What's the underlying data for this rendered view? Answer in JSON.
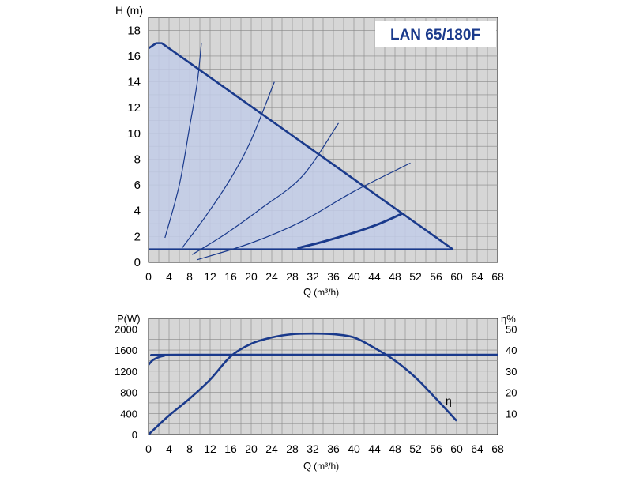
{
  "chart_data": [
    {
      "type": "line",
      "title": "LAN 65/180F",
      "ylabel": "H (m)",
      "xlabel": "Q",
      "xlabel_unit": "(m³/h)",
      "xlim": [
        0,
        68
      ],
      "ylim": [
        0,
        19
      ],
      "x_ticks": [
        0,
        4,
        8,
        12,
        16,
        20,
        24,
        28,
        32,
        36,
        40,
        44,
        48,
        52,
        56,
        60,
        64,
        68
      ],
      "y_ticks": [
        0,
        2,
        4,
        6,
        8,
        10,
        12,
        14,
        16,
        18
      ],
      "grid": true,
      "colors": {
        "line": "#1a3a8c",
        "fill": "#c2cde8",
        "background": "#d6d6d6"
      },
      "envelope": [
        [
          0,
          16.6
        ],
        [
          1.5,
          17.0
        ],
        [
          2.6,
          17.0
        ],
        [
          59.3,
          1.0
        ],
        [
          0,
          1.0
        ]
      ],
      "min_speed_line": [
        [
          0,
          1.0
        ],
        [
          59.3,
          1.0
        ]
      ],
      "system_curves": [
        [
          [
            3.2,
            1.9
          ],
          [
            6,
            6
          ],
          [
            8,
            10.5
          ],
          [
            9.5,
            14
          ],
          [
            10.3,
            17
          ]
        ],
        [
          [
            6.5,
            1.1
          ],
          [
            11,
            3.5
          ],
          [
            16,
            6.5
          ],
          [
            20,
            9.5
          ],
          [
            24.5,
            14
          ]
        ],
        [
          [
            8.5,
            0.6
          ],
          [
            15,
            2.2
          ],
          [
            22,
            4.2
          ],
          [
            30,
            6.7
          ],
          [
            37,
            10.8
          ]
        ],
        [
          [
            9.5,
            0.2
          ],
          [
            20,
            1.5
          ],
          [
            30,
            3.2
          ],
          [
            40,
            5.5
          ],
          [
            51,
            7.7
          ]
        ]
      ],
      "operating_curve": [
        [
          29,
          1.1
        ],
        [
          34,
          1.6
        ],
        [
          40,
          2.3
        ],
        [
          45,
          3.0
        ],
        [
          49.5,
          3.8
        ]
      ]
    },
    {
      "type": "line",
      "ylabel_left": "P(W)",
      "ylabel_right": "η%",
      "xlabel": "Q",
      "xlabel_unit": "(m³/h)",
      "xlim": [
        0,
        68
      ],
      "ylim_left": [
        0,
        2200
      ],
      "ylim_right": [
        0,
        55
      ],
      "x_ticks": [
        0,
        4,
        8,
        12,
        16,
        20,
        24,
        28,
        32,
        36,
        40,
        44,
        48,
        52,
        56,
        60,
        64,
        68
      ],
      "y_ticks_left": [
        0,
        400,
        800,
        1200,
        1600,
        2000
      ],
      "y_ticks_right": [
        10,
        20,
        30,
        40,
        50
      ],
      "grid": true,
      "colors": {
        "line": "#1a3a8c",
        "background": "#d6d6d6"
      },
      "series": [
        {
          "name": "P",
          "axis": "left",
          "points": [
            [
              0,
              1320
            ],
            [
              1,
              1420
            ],
            [
              3,
              1490
            ],
            [
              6,
              1510
            ],
            [
              68,
              1510
            ]
          ]
        },
        {
          "name": "η",
          "axis": "right",
          "points": [
            [
              0,
              0
            ],
            [
              4,
              9
            ],
            [
              8,
              17
            ],
            [
              12,
              26
            ],
            [
              16,
              37
            ],
            [
              20,
              43
            ],
            [
              24,
              46
            ],
            [
              28,
              47.5
            ],
            [
              32,
              47.8
            ],
            [
              36,
              47.5
            ],
            [
              40,
              46
            ],
            [
              44,
              41
            ],
            [
              48,
              35
            ],
            [
              52,
              27
            ],
            [
              56,
              17
            ],
            [
              60,
              6.5
            ]
          ]
        }
      ],
      "series_label": "η"
    }
  ]
}
